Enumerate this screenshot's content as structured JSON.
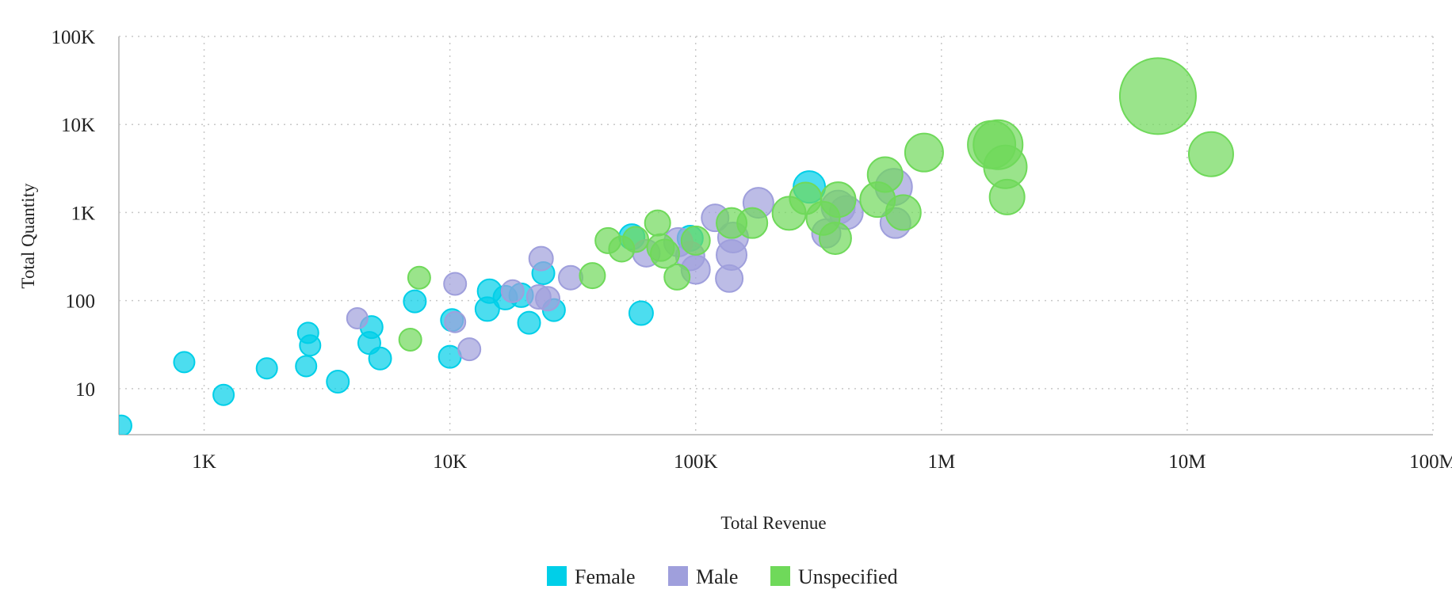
{
  "chart_data": {
    "type": "scatter",
    "xlabel": "Total Revenue",
    "ylabel": "Total Quantity",
    "x_scale": "log",
    "y_scale": "log",
    "xlim": [
      450,
      100000000
    ],
    "ylim": [
      3,
      100000
    ],
    "x_ticks": [
      {
        "value": 1000,
        "label": "1K"
      },
      {
        "value": 10000,
        "label": "10K"
      },
      {
        "value": 100000,
        "label": "100K"
      },
      {
        "value": 1000000,
        "label": "1M"
      },
      {
        "value": 10000000,
        "label": "10M"
      },
      {
        "value": 100000000,
        "label": "100M"
      }
    ],
    "y_ticks": [
      {
        "value": 10,
        "label": "10"
      },
      {
        "value": 100,
        "label": "100"
      },
      {
        "value": 1000,
        "label": "1K"
      },
      {
        "value": 10000,
        "label": "10K"
      },
      {
        "value": 100000,
        "label": "100K"
      }
    ],
    "grid": true,
    "legend_position": "bottom-center",
    "series": [
      {
        "name": "Female",
        "color": "#00cfe8",
        "points": [
          {
            "x": 460,
            "y": 3.8,
            "size": 13
          },
          {
            "x": 830,
            "y": 20,
            "size": 13
          },
          {
            "x": 1200,
            "y": 8.5,
            "size": 13
          },
          {
            "x": 1800,
            "y": 17,
            "size": 13
          },
          {
            "x": 2600,
            "y": 18,
            "size": 13
          },
          {
            "x": 2700,
            "y": 31,
            "size": 13
          },
          {
            "x": 2650,
            "y": 43,
            "size": 13
          },
          {
            "x": 3500,
            "y": 12,
            "size": 14
          },
          {
            "x": 4700,
            "y": 33,
            "size": 14
          },
          {
            "x": 4800,
            "y": 50,
            "size": 14
          },
          {
            "x": 5200,
            "y": 22,
            "size": 14
          },
          {
            "x": 7200,
            "y": 98,
            "size": 14
          },
          {
            "x": 10000,
            "y": 23,
            "size": 14
          },
          {
            "x": 10200,
            "y": 60,
            "size": 14
          },
          {
            "x": 14200,
            "y": 80,
            "size": 15
          },
          {
            "x": 14500,
            "y": 128,
            "size": 15
          },
          {
            "x": 16800,
            "y": 108,
            "size": 15
          },
          {
            "x": 19500,
            "y": 115,
            "size": 15
          },
          {
            "x": 21000,
            "y": 56,
            "size": 14
          },
          {
            "x": 24000,
            "y": 205,
            "size": 14
          },
          {
            "x": 26500,
            "y": 78,
            "size": 14
          },
          {
            "x": 55000,
            "y": 530,
            "size": 16
          },
          {
            "x": 60000,
            "y": 72,
            "size": 15
          },
          {
            "x": 95000,
            "y": 510,
            "size": 16
          },
          {
            "x": 290000,
            "y": 1950,
            "size": 20
          }
        ]
      },
      {
        "name": "Male",
        "color": "#9f9fdc",
        "points": [
          {
            "x": 4200,
            "y": 63,
            "size": 13
          },
          {
            "x": 10500,
            "y": 57,
            "size": 13
          },
          {
            "x": 10500,
            "y": 155,
            "size": 14
          },
          {
            "x": 12000,
            "y": 28,
            "size": 14
          },
          {
            "x": 18000,
            "y": 128,
            "size": 14
          },
          {
            "x": 23000,
            "y": 110,
            "size": 15
          },
          {
            "x": 23500,
            "y": 300,
            "size": 15
          },
          {
            "x": 25000,
            "y": 105,
            "size": 15
          },
          {
            "x": 31000,
            "y": 182,
            "size": 15
          },
          {
            "x": 63000,
            "y": 345,
            "size": 17
          },
          {
            "x": 85000,
            "y": 460,
            "size": 18
          },
          {
            "x": 95000,
            "y": 320,
            "size": 18
          },
          {
            "x": 100000,
            "y": 225,
            "size": 18
          },
          {
            "x": 120000,
            "y": 870,
            "size": 17
          },
          {
            "x": 137000,
            "y": 178,
            "size": 17
          },
          {
            "x": 140000,
            "y": 330,
            "size": 19
          },
          {
            "x": 142000,
            "y": 520,
            "size": 19
          },
          {
            "x": 180000,
            "y": 1290,
            "size": 19
          },
          {
            "x": 340000,
            "y": 580,
            "size": 18
          },
          {
            "x": 380000,
            "y": 1150,
            "size": 21
          },
          {
            "x": 410000,
            "y": 1000,
            "size": 21
          },
          {
            "x": 640000,
            "y": 1950,
            "size": 23
          },
          {
            "x": 650000,
            "y": 760,
            "size": 19
          }
        ]
      },
      {
        "name": "Unspecified",
        "color": "#6fd95a",
        "points": [
          {
            "x": 6900,
            "y": 36,
            "size": 14
          },
          {
            "x": 7500,
            "y": 182,
            "size": 14
          },
          {
            "x": 38000,
            "y": 192,
            "size": 16
          },
          {
            "x": 44000,
            "y": 480,
            "size": 16
          },
          {
            "x": 50000,
            "y": 385,
            "size": 16
          },
          {
            "x": 57000,
            "y": 495,
            "size": 16
          },
          {
            "x": 70000,
            "y": 760,
            "size": 16
          },
          {
            "x": 72000,
            "y": 400,
            "size": 17
          },
          {
            "x": 75000,
            "y": 340,
            "size": 18
          },
          {
            "x": 84000,
            "y": 185,
            "size": 16
          },
          {
            "x": 100000,
            "y": 480,
            "size": 18
          },
          {
            "x": 140000,
            "y": 760,
            "size": 19
          },
          {
            "x": 170000,
            "y": 760,
            "size": 19
          },
          {
            "x": 240000,
            "y": 980,
            "size": 21
          },
          {
            "x": 280000,
            "y": 1450,
            "size": 20
          },
          {
            "x": 330000,
            "y": 860,
            "size": 21
          },
          {
            "x": 370000,
            "y": 510,
            "size": 20
          },
          {
            "x": 380000,
            "y": 1400,
            "size": 22
          },
          {
            "x": 550000,
            "y": 1400,
            "size": 22
          },
          {
            "x": 590000,
            "y": 2700,
            "size": 22
          },
          {
            "x": 700000,
            "y": 1000,
            "size": 22
          },
          {
            "x": 850000,
            "y": 4800,
            "size": 24
          },
          {
            "x": 1600000,
            "y": 5900,
            "size": 30
          },
          {
            "x": 1700000,
            "y": 5900,
            "size": 31
          },
          {
            "x": 1820000,
            "y": 3300,
            "size": 27
          },
          {
            "x": 1850000,
            "y": 1500,
            "size": 22
          },
          {
            "x": 7600000,
            "y": 21000,
            "size": 48
          },
          {
            "x": 12500000,
            "y": 4600,
            "size": 28
          }
        ]
      }
    ]
  }
}
